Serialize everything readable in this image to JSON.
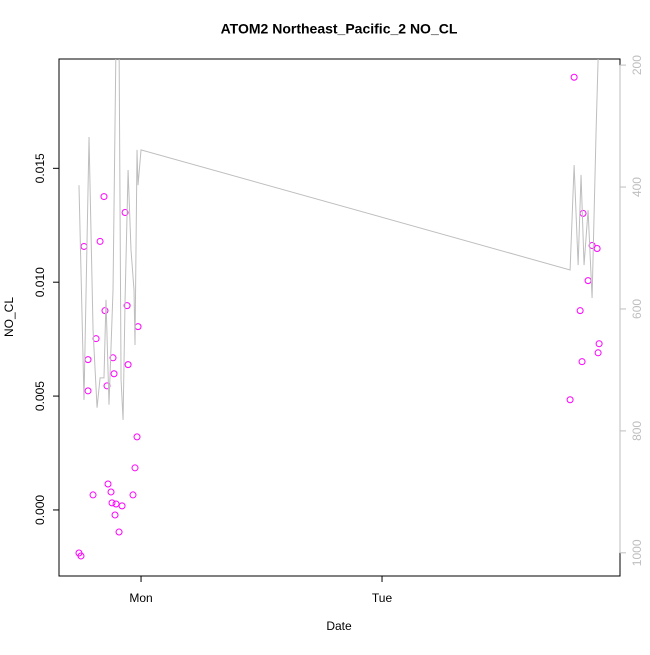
{
  "chart_data": {
    "type": "scatter",
    "title": "ATOM2 Northeast_Pacific_2 NO_CL",
    "x_label": "Date",
    "y_label": "NO_CL",
    "xlim": [
      -8.17,
      47.7
    ],
    "xticks": [
      {
        "value": 0,
        "label": "Mon"
      },
      {
        "value": 24,
        "label": "Tue"
      }
    ],
    "ylim": [
      -0.0029,
      0.0198
    ],
    "yticks": [
      {
        "value": 0,
        "label": "0.000"
      },
      {
        "value": 0.005,
        "label": "0.005"
      },
      {
        "value": 0.01,
        "label": "0.010"
      },
      {
        "value": 0.015,
        "label": "0.015"
      }
    ],
    "y2lim": [
      1038,
      190
    ],
    "y2ticks": [
      200,
      400,
      600,
      800,
      1000
    ],
    "y2color": "#bebebe",
    "series": [
      {
        "color": "#ff00ff",
        "marker": "circle",
        "x": [
          -6.18,
          -5.98,
          -5.68,
          -5.28,
          -5.28,
          -4.78,
          -4.48,
          -4.08,
          -3.69,
          -3.59,
          -3.39,
          -3.29,
          -2.99,
          -2.89,
          -2.79,
          -2.69,
          -2.59,
          -2.49,
          -2.19,
          -1.89,
          -1.59,
          -1.39,
          -1.29,
          -0.8,
          -0.6,
          -0.4,
          -0.3,
          42.73,
          43.13,
          43.73,
          43.92,
          44.02,
          44.52,
          44.92,
          45.42,
          45.52,
          45.62
        ],
        "values": [
          -0.00189,
          -0.00202,
          0.01157,
          0.0066,
          0.00523,
          0.00066,
          0.00752,
          0.01179,
          0.01376,
          0.00875,
          0.00545,
          0.00114,
          0.00079,
          0.00031,
          0.00668,
          0.00598,
          -0.00022,
          0.00026,
          -0.00097,
          0.00018,
          0.01306,
          0.00897,
          0.00638,
          0.00066,
          0.00185,
          0.00321,
          0.00805,
          0.00484,
          0.019,
          0.00875,
          0.00651,
          0.01302,
          0.01007,
          0.01161,
          0.01148,
          0.0069,
          0.0073
        ]
      },
      {
        "color": "#bebebe",
        "marker": "line",
        "axis": "y2",
        "x": [
          -6.18,
          -5.68,
          -5.18,
          -4.78,
          -4.38,
          -4.08,
          -3.69,
          -3.49,
          -3.19,
          -2.79,
          -2.49,
          -2.19,
          -1.99,
          -1.79,
          -1.59,
          -1.29,
          -1.0,
          -0.7,
          -0.6,
          -0.4,
          -0.3,
          0,
          42.73,
          43.13,
          43.53,
          43.82,
          44.12,
          44.52,
          44.92,
          45.32,
          45.52,
          45.72
        ],
        "values": [
          397,
          749,
          318,
          634,
          762,
          713,
          713,
          585,
          757,
          569,
          159,
          159,
          716,
          782,
          585,
          372,
          503,
          569,
          659,
          339,
          397,
          339,
          536,
          364,
          528,
          380,
          528,
          438,
          582,
          307,
          190,
          159
        ]
      }
    ]
  }
}
